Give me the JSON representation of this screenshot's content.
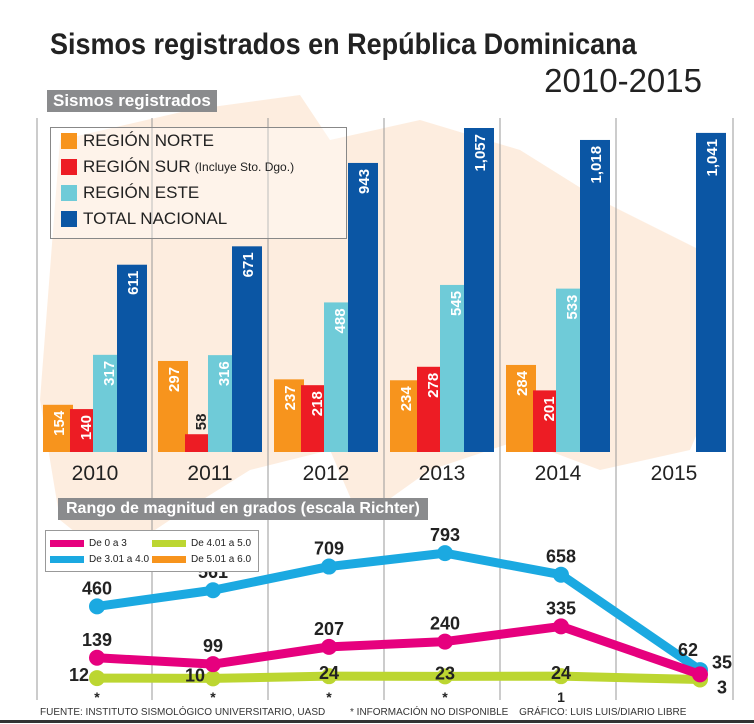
{
  "title": "Sismos registrados en República Dominicana",
  "subtitle": "2010-2015",
  "footer": {
    "source": "FUENTE: INSTITUTO SISMOLÓGICO UNIVERSITARIO, UASD",
    "note": "* INFORMACIÓN NO DISPONIBLE",
    "credit": "GRÁFICO: LUIS LUIS/DIARIO LIBRE"
  },
  "chart_data": [
    {
      "type": "bar",
      "title": "Sismos registrados",
      "categories": [
        "2010",
        "2011",
        "2012",
        "2013",
        "2014",
        "2015"
      ],
      "series": [
        {
          "name": "REGIÓN NORTE",
          "color": "#f7941d",
          "values": [
            154,
            297,
            237,
            234,
            284,
            null
          ]
        },
        {
          "name": "REGIÓN SUR",
          "name_note": "(Incluye Sto. Dgo.)",
          "color": "#ed1c24",
          "values": [
            140,
            58,
            218,
            278,
            201,
            null
          ]
        },
        {
          "name": "REGIÓN ESTE",
          "color": "#6fcbd8",
          "values": [
            317,
            316,
            488,
            545,
            533,
            null
          ]
        },
        {
          "name": "TOTAL NACIONAL",
          "color": "#0b56a4",
          "values": [
            611,
            671,
            943,
            1057,
            1018,
            1041
          ]
        }
      ],
      "value_labels": [
        [
          "154",
          "140",
          "317",
          "611"
        ],
        [
          "297",
          "58",
          "316",
          "671"
        ],
        [
          "237",
          "218",
          "488",
          "943"
        ],
        [
          "234",
          "278",
          "545",
          "1,057"
        ],
        [
          "284",
          "201",
          "533",
          "1,018"
        ],
        [
          "",
          "",
          "",
          "1,041"
        ]
      ],
      "legend": "top-left"
    },
    {
      "type": "line",
      "title": "Rango de magnitud en grados (escala Richter)",
      "categories": [
        "2010",
        "2011",
        "2012",
        "2013",
        "2014",
        "2015"
      ],
      "series": [
        {
          "name": "De 0 a 3",
          "color": "#e6007e",
          "values": [
            139,
            99,
            207,
            240,
            335,
            35
          ]
        },
        {
          "name": "De 3.01 a 4.0",
          "color": "#1ba9e1",
          "values": [
            460,
            561,
            709,
            793,
            658,
            62
          ]
        },
        {
          "name": "De 4.01 a 5.0",
          "color": "#bcd631",
          "values": [
            12,
            10,
            24,
            23,
            24,
            3
          ]
        },
        {
          "name": "De 5.01 a 6.0",
          "color": "#f7941d",
          "values": [
            null,
            null,
            null,
            null,
            1,
            null
          ]
        }
      ],
      "unavailable_marker": "*",
      "legend": "top-left"
    }
  ]
}
